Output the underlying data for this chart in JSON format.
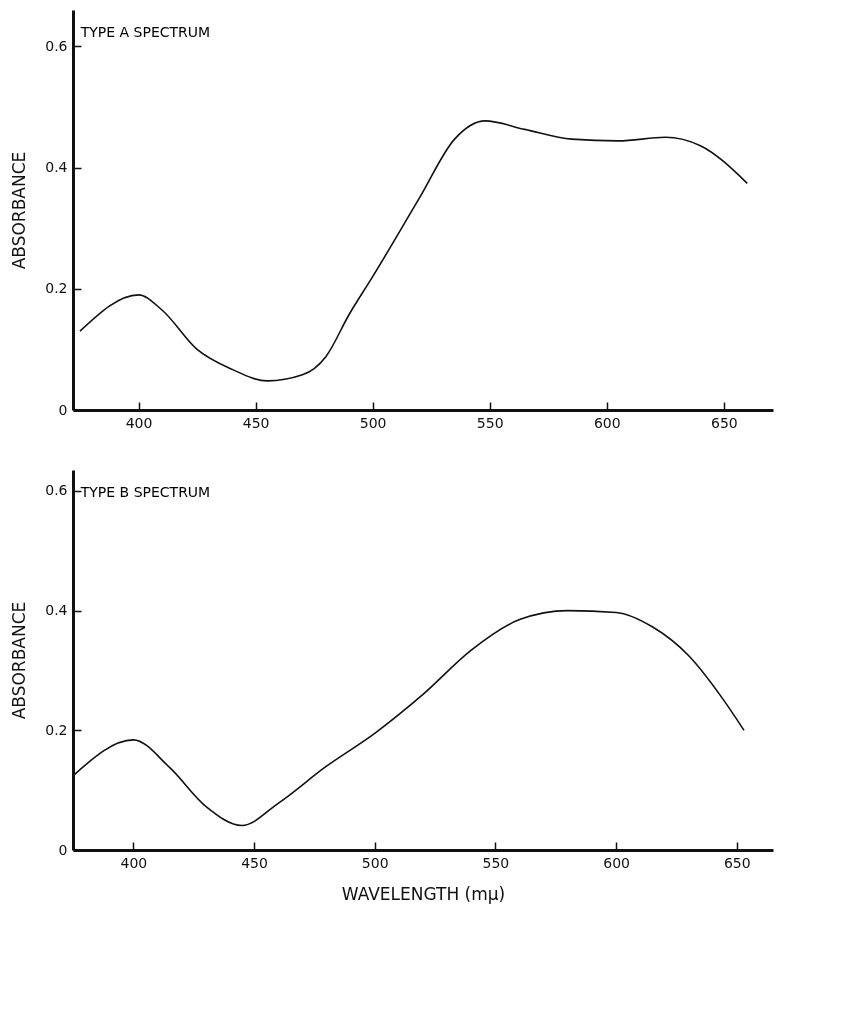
{
  "chart_data": [
    {
      "type": "line",
      "title": "TYPE A SPECTRUM",
      "ylabel": "ABSORBANCE",
      "x": [
        375,
        400,
        410,
        425,
        440,
        455,
        470,
        480,
        490,
        500,
        520,
        535,
        548,
        565,
        585,
        605,
        625,
        640,
        660
      ],
      "series": [
        {
          "color": "#111111",
          "values": [
            0.13,
            0.19,
            0.165,
            0.1,
            0.067,
            0.048,
            0.058,
            0.088,
            0.158,
            0.22,
            0.35,
            0.447,
            0.477,
            0.463,
            0.447,
            0.444,
            0.45,
            0.436,
            0.374
          ]
        }
      ],
      "xlim": [
        372,
        671
      ],
      "ylim": [
        0,
        0.66
      ],
      "xticks": [
        400,
        450,
        500,
        550,
        600,
        650
      ],
      "yticks": [
        0,
        0.2,
        0.4,
        0.6
      ]
    },
    {
      "type": "line",
      "title": "TYPE B SPECTRUM",
      "ylabel": "ABSORBANCE",
      "xlabel": "WAVELENGTH  (mμ)",
      "x": [
        375,
        400,
        415,
        430,
        445,
        460,
        480,
        500,
        520,
        540,
        560,
        580,
        600,
        615,
        630,
        645,
        653
      ],
      "series": [
        {
          "color": "#111111",
          "values": [
            0.124,
            0.184,
            0.138,
            0.073,
            0.041,
            0.078,
            0.14,
            0.195,
            0.26,
            0.334,
            0.385,
            0.4,
            0.397,
            0.373,
            0.325,
            0.248,
            0.2
          ]
        }
      ],
      "xlim": [
        375,
        665
      ],
      "ylim": [
        0,
        0.635
      ],
      "xticks": [
        400,
        450,
        500,
        550,
        600,
        650
      ],
      "yticks": [
        0,
        0.2,
        0.4,
        0.6
      ]
    }
  ]
}
